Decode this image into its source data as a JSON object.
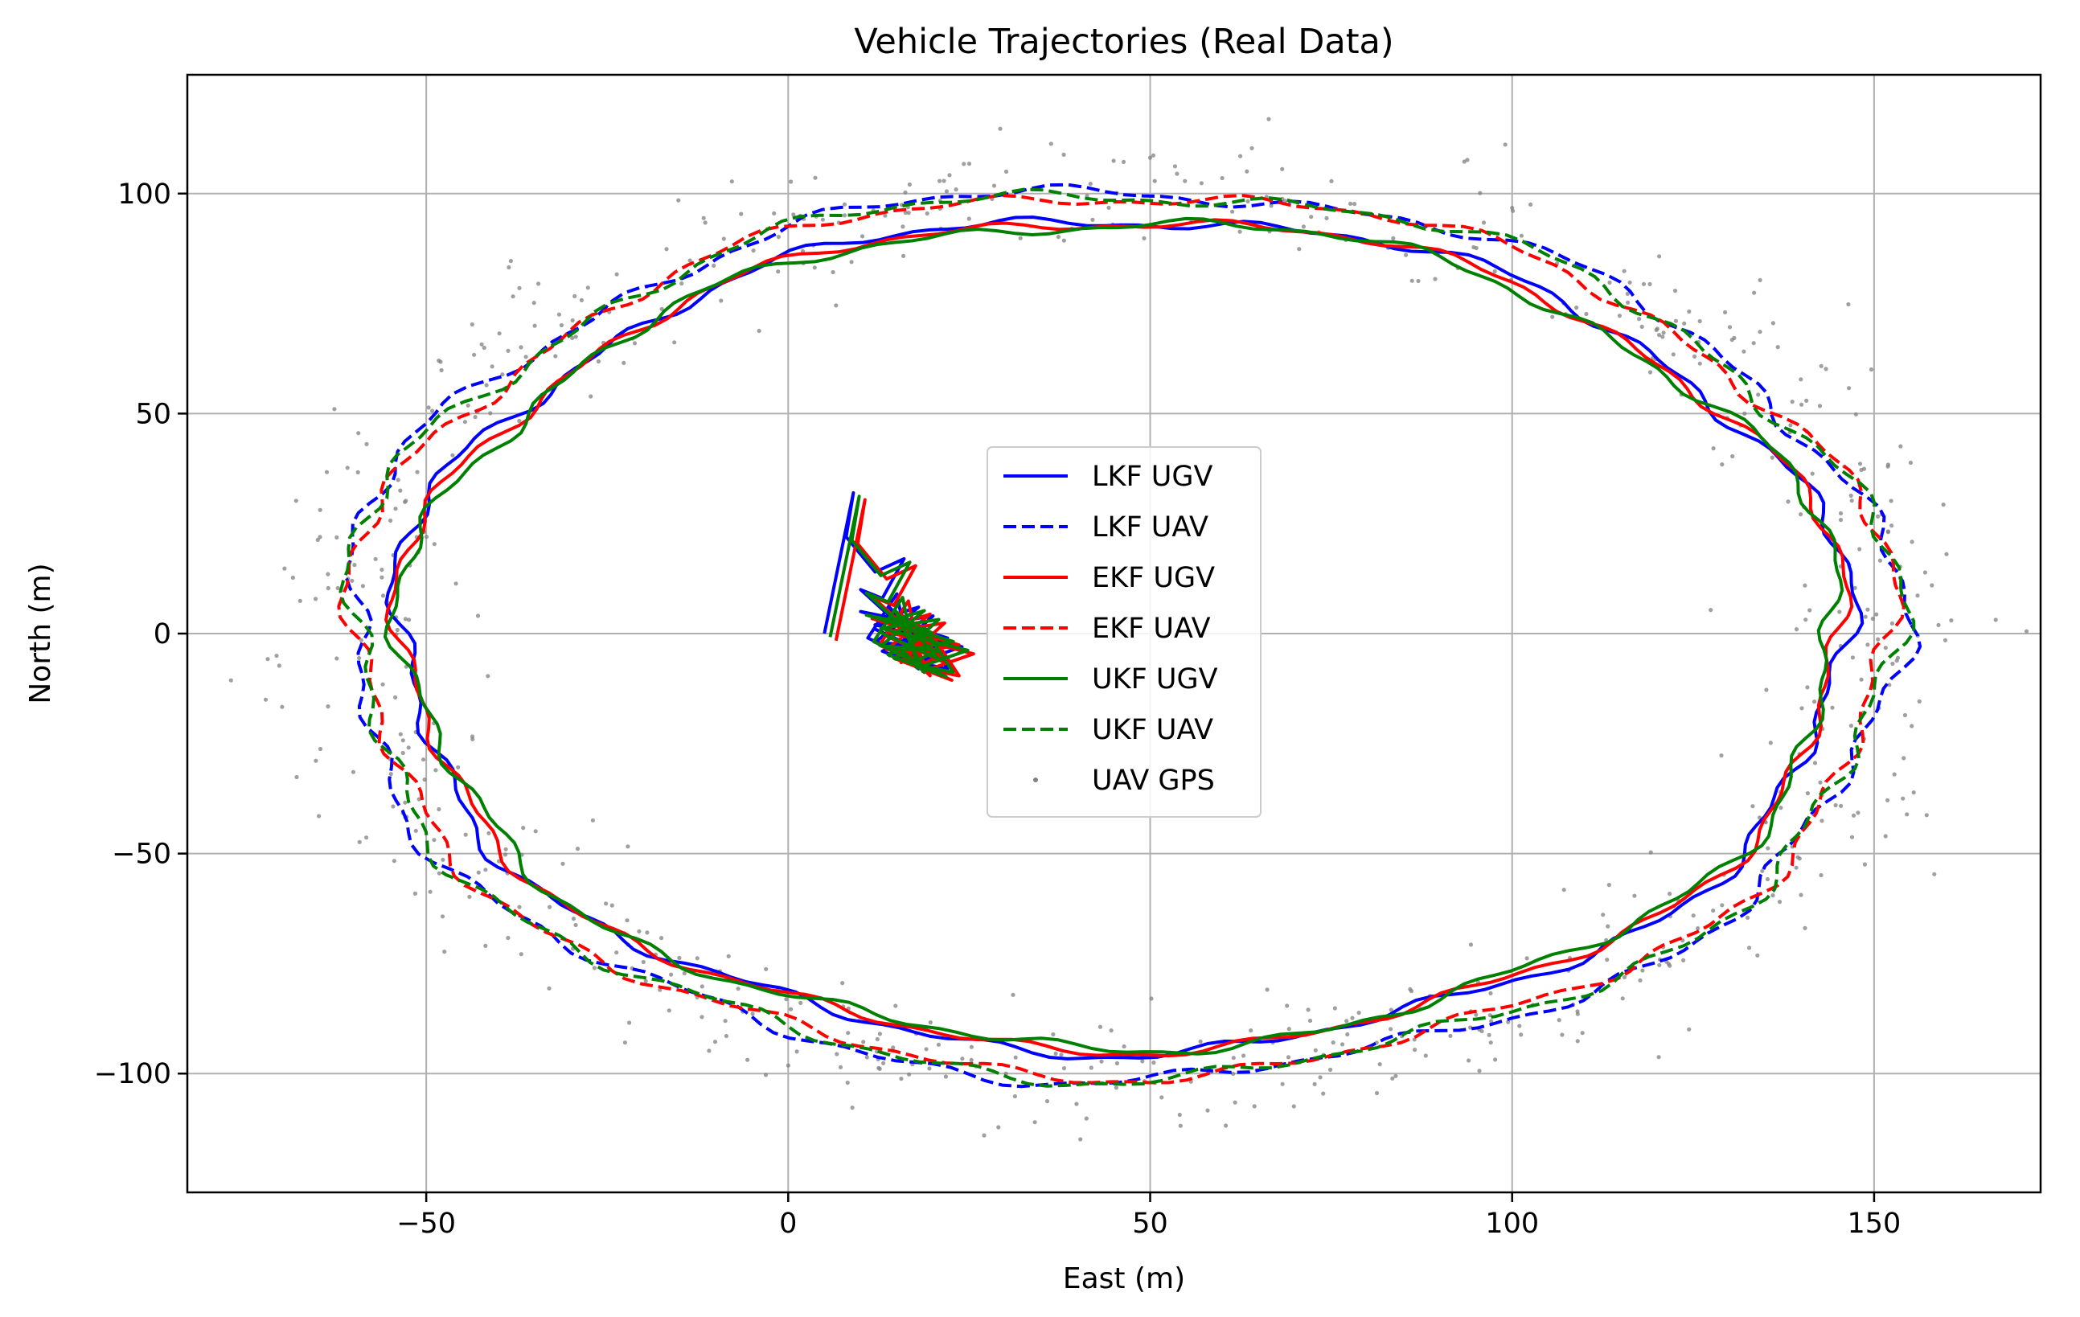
{
  "chart_data": {
    "type": "line",
    "title": "Vehicle Trajectories (Real Data)",
    "xlabel": "East (m)",
    "ylabel": "North (m)",
    "xlim": [
      -83,
      173
    ],
    "ylim": [
      -127,
      127
    ],
    "xticks": [
      -50,
      0,
      50,
      100,
      150
    ],
    "yticks": [
      -100,
      -50,
      0,
      50,
      100
    ],
    "xtick_labels": [
      "−50",
      "0",
      "50",
      "100",
      "150"
    ],
    "ytick_labels": [
      "−100",
      "−50",
      "0",
      "50",
      "100"
    ],
    "grid": true,
    "legend_position": "center",
    "series": [
      {
        "name": "LKF UGV",
        "color": "#0000ff",
        "style": "solid",
        "role": "ugv"
      },
      {
        "name": "LKF UAV",
        "color": "#0000ff",
        "style": "dashed",
        "role": "uav"
      },
      {
        "name": "EKF UGV",
        "color": "#ff0000",
        "style": "solid",
        "role": "ugv"
      },
      {
        "name": "EKF UAV",
        "color": "#ff0000",
        "style": "dashed",
        "role": "uav"
      },
      {
        "name": "UKF UGV",
        "color": "#008000",
        "style": "solid",
        "role": "ugv"
      },
      {
        "name": "UKF UAV",
        "color": "#008000",
        "style": "dashed",
        "role": "uav"
      },
      {
        "name": "UAV GPS",
        "color": "#808080",
        "style": "points",
        "role": "gps"
      }
    ],
    "uav_ellipse": {
      "center": [
        46,
        0
      ],
      "radius_east": 106,
      "radius_north": 100
    },
    "ugv_cluster": [
      [
        5,
        0
      ],
      [
        9,
        32
      ],
      [
        8,
        22
      ],
      [
        12,
        14
      ],
      [
        16,
        17
      ],
      [
        13,
        8
      ],
      [
        10,
        10
      ],
      [
        14,
        4
      ],
      [
        18,
        6
      ],
      [
        12,
        -2
      ],
      [
        20,
        -3
      ],
      [
        16,
        -6
      ],
      [
        22,
        -8
      ],
      [
        18,
        2
      ],
      [
        14,
        -5
      ],
      [
        20,
        4
      ],
      [
        12,
        2
      ],
      [
        24,
        -3
      ],
      [
        17,
        -7
      ],
      [
        15,
        9
      ],
      [
        11,
        -1
      ],
      [
        21,
        -9
      ],
      [
        13,
        -4
      ],
      [
        19,
        1
      ],
      [
        16,
        3
      ],
      [
        10,
        5
      ],
      [
        22,
        -1
      ],
      [
        15,
        -3
      ],
      [
        18,
        -8
      ],
      [
        14,
        6
      ],
      [
        20,
        -5
      ],
      [
        12,
        1
      ]
    ]
  }
}
